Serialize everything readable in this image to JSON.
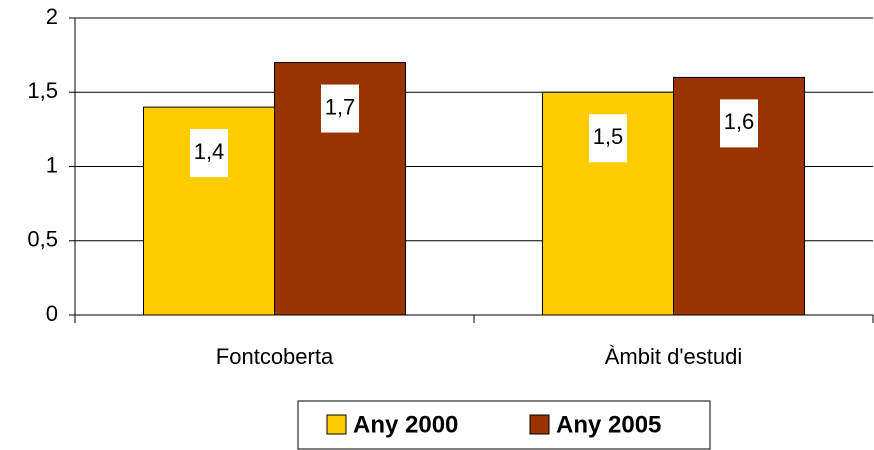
{
  "chart_data": {
    "type": "bar",
    "categories": [
      "Fontcoberta",
      "Àmbit d'estudi"
    ],
    "series": [
      {
        "name": "Any 2000",
        "color": "#ffcc00",
        "values": [
          1.4,
          1.5
        ],
        "value_labels": [
          "1,4",
          "1,5"
        ]
      },
      {
        "name": "Any 2005",
        "color": "#993300",
        "values": [
          1.7,
          1.6
        ],
        "value_labels": [
          "1,7",
          "1,6"
        ]
      }
    ],
    "ylim": [
      0,
      2
    ],
    "yticks": [
      0,
      {
        "value": 0.5,
        "label": "0,5"
      },
      1,
      {
        "value": 1.5,
        "label": "1,5"
      },
      2
    ],
    "grid": true,
    "legend": "bottom"
  }
}
